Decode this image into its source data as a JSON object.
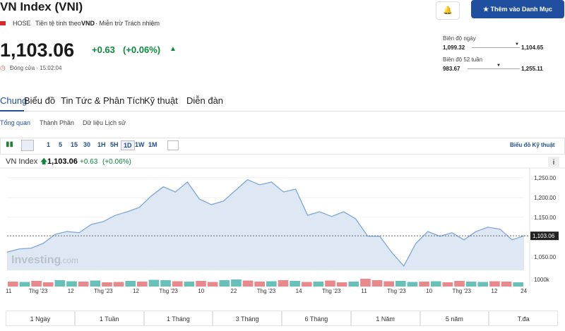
{
  "header": {
    "title": "VN Index (VNI)",
    "exchange": "HOSE",
    "currency_text": "Tiền tệ tính theo",
    "currency": "VND",
    "disclaimer": "· Miễn trừ Trách nhiệm",
    "price": "1,103.06",
    "change": "+0.63",
    "change_pct": "(+0.06%)",
    "status": "Đóng cửa · 15:02:04",
    "button": "Thêm vào Danh Mục",
    "day_range": {
      "label": "Biên độ ngày",
      "low": "1,099.32",
      "high": "1,104.65"
    },
    "year_range": {
      "label": "Biên độ 52 tuần",
      "low": "983.67",
      "high": "1,255.11"
    }
  },
  "tabs": [
    "Chung",
    "Biểu đồ",
    "Tin Tức & Phân Tích",
    "Kỹ thuật",
    "Diễn đàn"
  ],
  "subtabs": [
    "Tổng quan",
    "Thành Phần",
    "Dữ liệu Lịch sử"
  ],
  "toolbar": {
    "intervals": [
      "1",
      "5",
      "15",
      "30",
      "1H",
      "5H",
      "1D",
      "1W",
      "1M"
    ],
    "link": "Biểu đồ Kỹ thuật"
  },
  "chart_data": {
    "type": "area",
    "name": "VN Index",
    "last": "1,103.06",
    "change": "+0.63",
    "change_pct": "(+0.06%)",
    "info": "i",
    "watermark": "Investing",
    "watermark_suffix": ".com",
    "color": "#7ea6d6",
    "fill": "#dde8f4",
    "values": [
      1062,
      1070,
      1072,
      1084,
      1107,
      1114,
      1111,
      1132,
      1139,
      1155,
      1164,
      1175,
      1204,
      1227,
      1214,
      1239,
      1196,
      1182,
      1191,
      1218,
      1245,
      1232,
      1239,
      1214,
      1221,
      1155,
      1164,
      1152,
      1164,
      1146,
      1102,
      1102,
      1061,
      1027,
      1084,
      1114,
      1102,
      1111,
      1093,
      1114,
      1125,
      1120,
      1093,
      1103.06
    ],
    "ylim": [
      1016,
      1271
    ],
    "yticks": [
      {
        "value": 1050,
        "label": "1,050.00"
      },
      {
        "value": 1150,
        "label": "1,150.00"
      },
      {
        "value": 1200,
        "label": "1,200.00"
      },
      {
        "value": 1250,
        "label": "1,250.00"
      }
    ],
    "grid": true,
    "xlabels": [
      "11",
      "Thg '23",
      "12",
      "Thg '23",
      "12",
      "Thg '23",
      "10",
      "22",
      "Thg '23",
      "14",
      "Thg '23",
      "11",
      "Thg '23",
      "10",
      "Thg '23",
      "12",
      "24"
    ],
    "volume": {
      "values": [
        700,
        650,
        800,
        600,
        900,
        750,
        700,
        850,
        600,
        650,
        800,
        700,
        950,
        900,
        750,
        700,
        800,
        650,
        900,
        1000,
        850,
        700,
        750,
        900,
        800,
        650,
        700,
        850,
        600,
        700,
        1100,
        900,
        750,
        800,
        650,
        700,
        750,
        600,
        800,
        700,
        650,
        750,
        700,
        600
      ],
      "colors": [
        "#e0575b",
        "#26a69a",
        "#e0575b",
        "#e0575b",
        "#26a69a",
        "#26a69a",
        "#e0575b",
        "#26a69a",
        "#e0575b",
        "#e0575b",
        "#26a69a",
        "#e0575b",
        "#26a69a",
        "#26a69a",
        "#e0575b",
        "#26a69a",
        "#e0575b",
        "#e0575b",
        "#26a69a",
        "#26a69a",
        "#e0575b",
        "#e0575b",
        "#26a69a",
        "#e0575b",
        "#26a69a",
        "#e0575b",
        "#26a69a",
        "#e0575b",
        "#e0575b",
        "#26a69a",
        "#e0575b",
        "#e0575b",
        "#e0575b",
        "#26a69a",
        "#26a69a",
        "#e0575b",
        "#26a69a",
        "#e0575b",
        "#e0575b",
        "#26a69a",
        "#26a69a",
        "#e0575b",
        "#e0575b",
        "#26a69a"
      ],
      "ylim": [
        0,
        2300
      ],
      "yticks": [
        {
          "value": 1000,
          "label": "1000k"
        }
      ]
    }
  },
  "ranges": [
    "1 Ngày",
    "1 Tuần",
    "1 Tháng",
    "3 Tháng",
    "6 Tháng",
    "1 Năm",
    "5 năm",
    "T.đa"
  ]
}
